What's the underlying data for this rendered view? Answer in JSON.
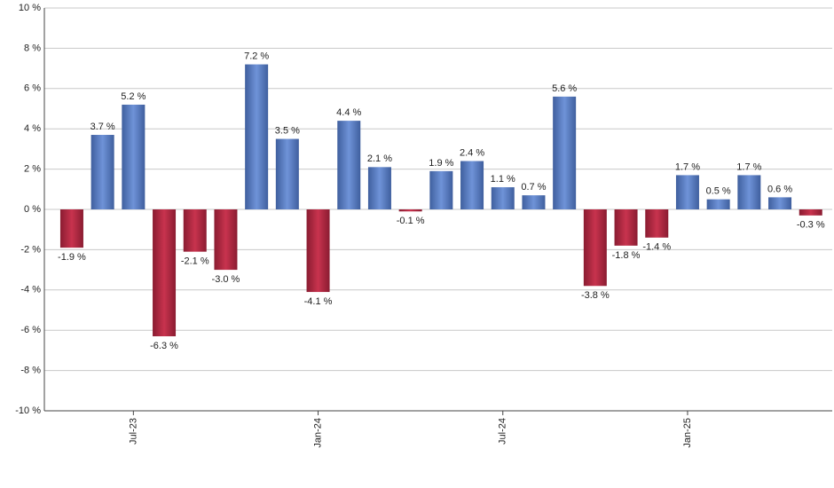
{
  "chart_data": {
    "type": "bar",
    "categories": [
      null,
      null,
      "Jul-23",
      null,
      null,
      null,
      null,
      null,
      "Jan-24",
      null,
      null,
      null,
      null,
      null,
      "Jul-24",
      null,
      null,
      null,
      null,
      null,
      "Jan-25",
      null,
      null,
      null,
      null
    ],
    "values": [
      -1.9,
      3.7,
      5.2,
      -6.3,
      -2.1,
      -3.0,
      7.2,
      3.5,
      -4.1,
      4.4,
      2.1,
      -0.1,
      1.9,
      2.4,
      1.1,
      0.7,
      5.6,
      -3.8,
      -1.8,
      -1.4,
      1.7,
      0.5,
      1.7,
      0.6,
      -0.3
    ],
    "value_labels": [
      "-1.9 %",
      "3.7 %",
      "5.2 %",
      "-6.3 %",
      "-2.1 %",
      "-3.0 %",
      "7.2 %",
      "3.5 %",
      "-4.1 %",
      "4.4 %",
      "2.1 %",
      "-0.1 %",
      "1.9 %",
      "2.4 %",
      "1.1 %",
      "0.7 %",
      "5.6 %",
      "-3.8 %",
      "-1.8 %",
      "-1.4 %",
      "1.7 %",
      "0.5 %",
      "1.7 %",
      "0.6 %",
      "-0.3 %"
    ],
    "color_positive": "#6f93d8",
    "color_negative": "#c8334e",
    "ylim": [
      -10,
      10
    ],
    "yticks": [
      {
        "value": -10,
        "label": "-10 %"
      },
      {
        "value": -8,
        "label": "-8 %"
      },
      {
        "value": -6,
        "label": "-6 %"
      },
      {
        "value": -4,
        "label": "-4 %"
      },
      {
        "value": -2,
        "label": "-2 %"
      },
      {
        "value": 0,
        "label": "0 %"
      },
      {
        "value": 2,
        "label": "2 %"
      },
      {
        "value": 4,
        "label": "4 %"
      },
      {
        "value": 6,
        "label": "6 %"
      },
      {
        "value": 8,
        "label": "8 %"
      },
      {
        "value": 10,
        "label": "10 %"
      }
    ],
    "grid": true
  }
}
